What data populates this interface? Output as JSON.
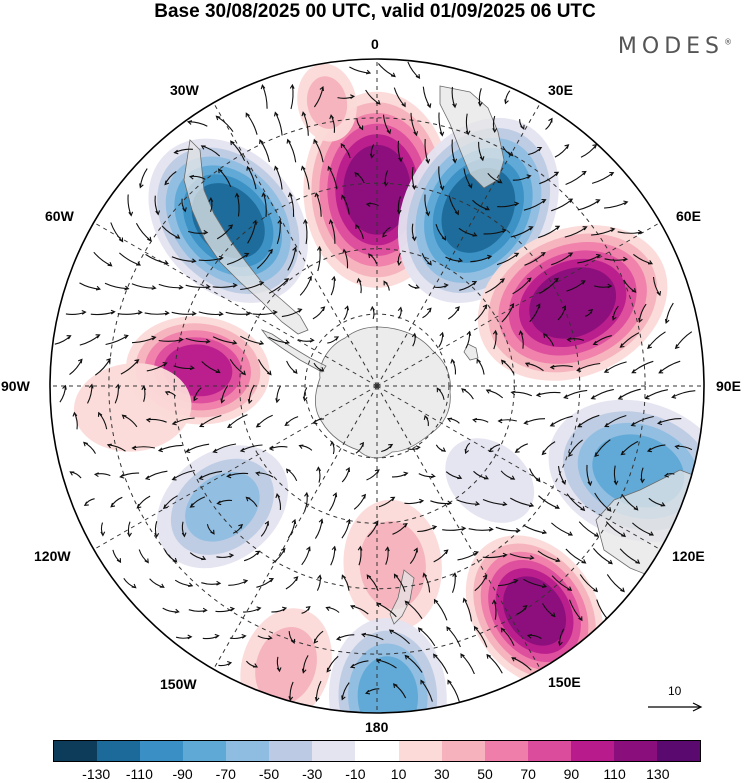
{
  "header": {
    "title": "Base 30/08/2025 00 UTC, valid 01/09/2025 06 UTC"
  },
  "brand": {
    "text": "MODES",
    "mark": "®"
  },
  "longitude_labels": {
    "lon_0": "0",
    "lon_30e": "30E",
    "lon_60e": "60E",
    "lon_90e": "90E",
    "lon_120e": "120E",
    "lon_150e": "150E",
    "lon_180": "180",
    "lon_150w": "150W",
    "lon_120w": "120W",
    "lon_90w": "90W",
    "lon_60w": "60W",
    "lon_30w": "30W"
  },
  "reference_vector": {
    "label": "10"
  },
  "colorbar": {
    "colors": [
      "#0d3b5a",
      "#1c6a99",
      "#3a8fc4",
      "#5fa9d6",
      "#8fbde2",
      "#bccbe3",
      "#e4e3f0",
      "#ffffff",
      "#fbdad8",
      "#f6b2bd",
      "#ef7faa",
      "#dc4c9c",
      "#b81c8c",
      "#8a0f7c",
      "#5a0a6e"
    ],
    "ticks": [
      "-130",
      "-110",
      "-90",
      "-70",
      "-50",
      "-30",
      "-10",
      "10",
      "30",
      "50",
      "70",
      "90",
      "110",
      "130"
    ]
  },
  "anomalies": [
    {
      "lon": 0,
      "r": 0.6,
      "value": 125,
      "size": 0.3
    },
    {
      "lon": -10,
      "r": 0.88,
      "value": 40,
      "size": 0.12
    },
    {
      "lon": 30,
      "r": 0.62,
      "value": -120,
      "size": 0.3
    },
    {
      "lon": -42,
      "r": 0.68,
      "value": -115,
      "size": 0.28
    },
    {
      "lon": 67,
      "r": 0.65,
      "value": 120,
      "size": 0.3
    },
    {
      "lon": -85,
      "r": 0.55,
      "value": 95,
      "size": 0.22
    },
    {
      "lon": -95,
      "r": 0.75,
      "value": 25,
      "size": 0.18
    },
    {
      "lon": 108,
      "r": 0.84,
      "value": -80,
      "size": 0.28
    },
    {
      "lon": -128,
      "r": 0.6,
      "value": -55,
      "size": 0.22
    },
    {
      "lon": 175,
      "r": 0.55,
      "value": 40,
      "size": 0.2
    },
    {
      "lon": 145,
      "r": 0.84,
      "value": 110,
      "size": 0.25
    },
    {
      "lon": 178,
      "r": 0.95,
      "value": -75,
      "size": 0.24
    },
    {
      "lon": -162,
      "r": 0.9,
      "value": 30,
      "size": 0.18
    },
    {
      "lon": 130,
      "r": 0.45,
      "value": -25,
      "size": 0.15
    }
  ]
}
